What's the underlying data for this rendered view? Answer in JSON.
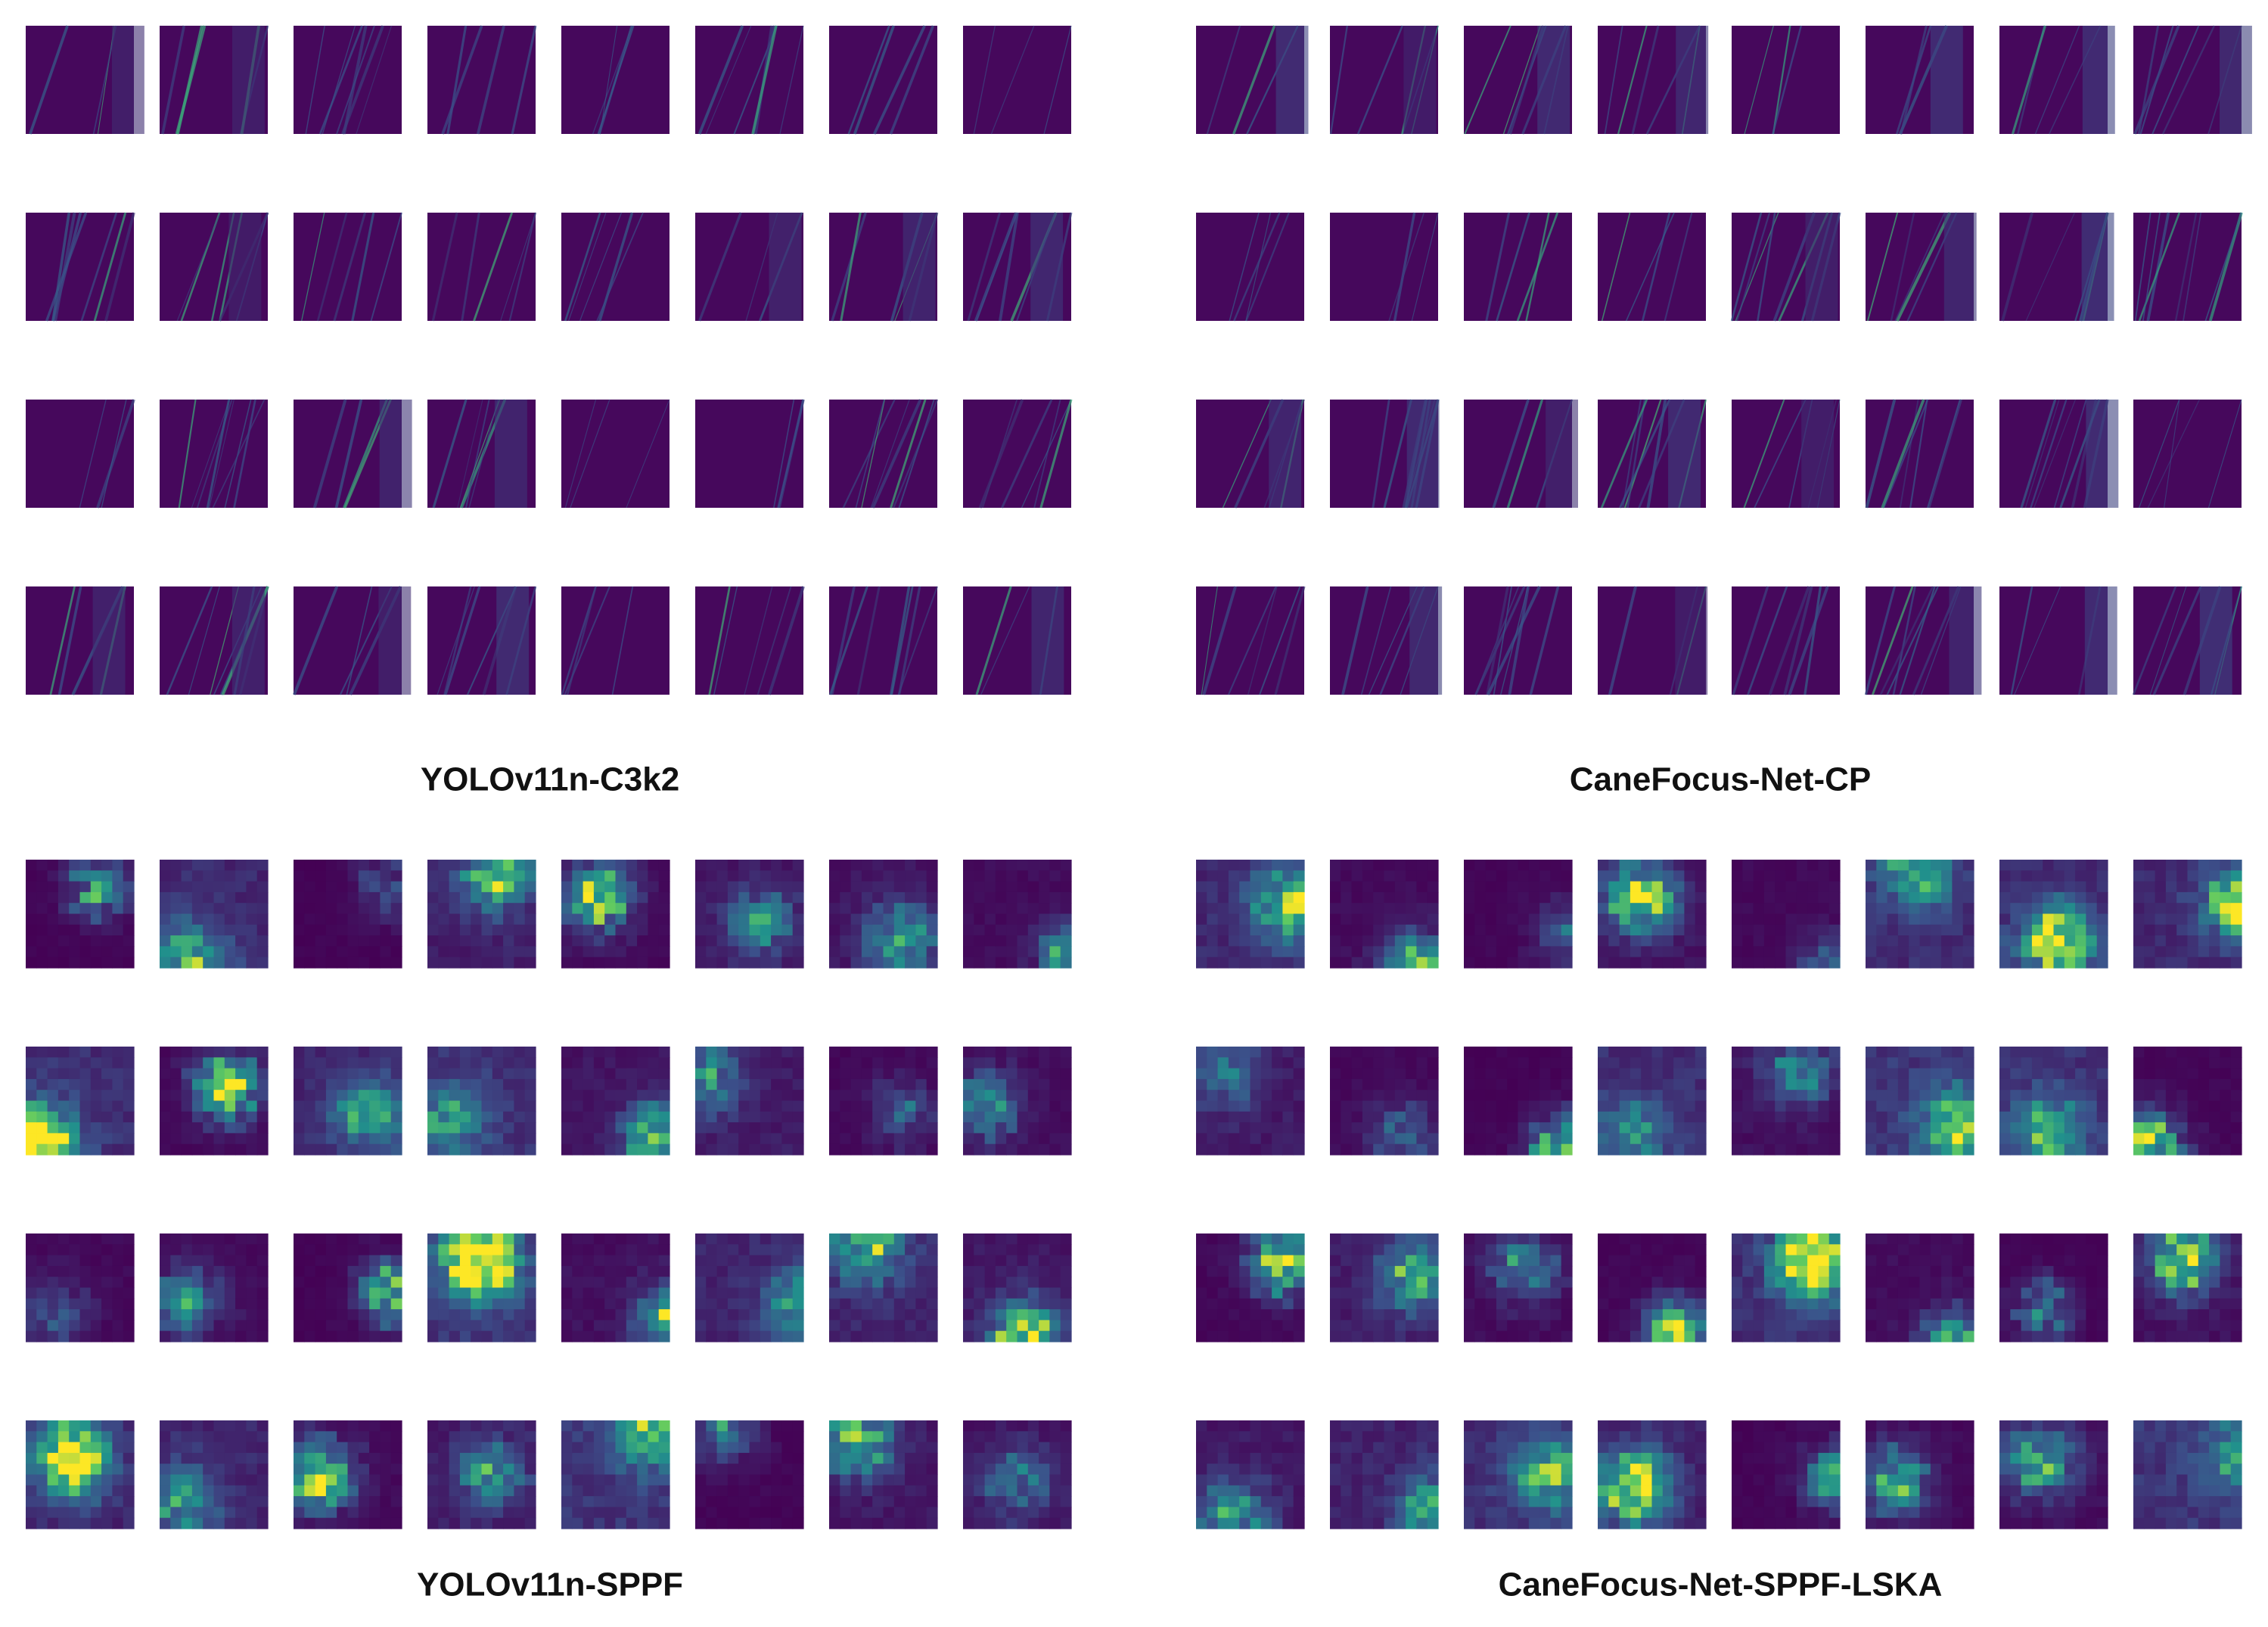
{
  "panels": [
    {
      "caption": "YOLOv11n-C3k2"
    },
    {
      "caption": "CaneFocus-Net-CP"
    },
    {
      "caption": "YOLOv11n-SPPF"
    },
    {
      "caption": "CaneFocus-Net-SPPF-LSKA"
    }
  ]
}
